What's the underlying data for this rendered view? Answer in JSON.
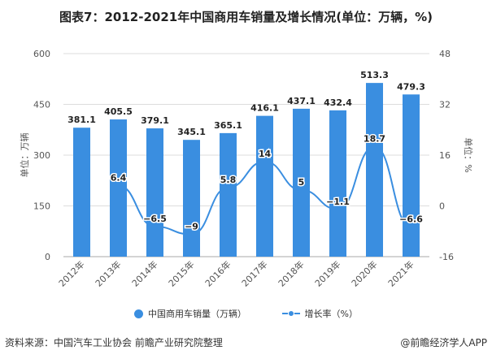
{
  "title": "图表7：2012-2021年中国商用车销量及增长情况(单位：万辆，%)",
  "source": "资料来源：中国汽车工业协会 前瞻产业研究院整理",
  "credit": "@前瞻经济学人APP",
  "chart_data": {
    "type": "bar+line",
    "categories": [
      "2012年",
      "2013年",
      "2014年",
      "2015年",
      "2016年",
      "2017年",
      "2018年",
      "2019年",
      "2020年",
      "2021年"
    ],
    "series": [
      {
        "name": "中国商用车销量（万辆）",
        "type": "bar",
        "axis": "left",
        "values": [
          381.1,
          405.5,
          379.1,
          345.1,
          365.1,
          416.1,
          437.1,
          432.4,
          513.3,
          479.3
        ]
      },
      {
        "name": "增长率（%）",
        "type": "line",
        "axis": "right",
        "values": [
          null,
          6.4,
          -6.5,
          -9,
          5.8,
          14,
          5,
          -1.1,
          18.7,
          -6.6
        ]
      }
    ],
    "ylabel": "单位：万辆",
    "y2label": "单位：%",
    "ylim": [
      0,
      600
    ],
    "yticks": [
      0,
      150,
      300,
      450,
      600
    ],
    "y2lim": [
      -16,
      48
    ],
    "y2ticks": [
      -16,
      0,
      16,
      32,
      48
    ],
    "grid": true,
    "legend": "bottom",
    "color": "#3a8ee0"
  }
}
